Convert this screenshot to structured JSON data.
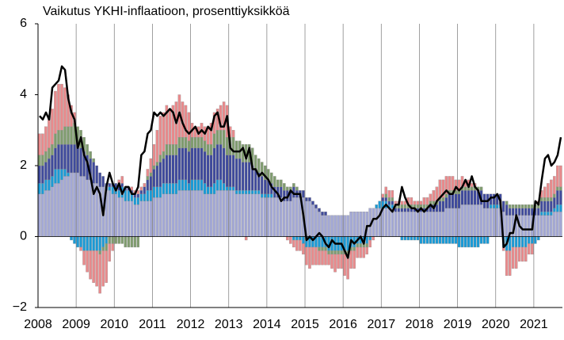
{
  "chart_data": {
    "type": "stacked_bar",
    "title": "Vaikutus YKHI-inflaatioon, prosenttiyksikköä",
    "categories": [
      "2008",
      null,
      null,
      null,
      null,
      null,
      null,
      null,
      null,
      null,
      null,
      null,
      "2009",
      null,
      null,
      null,
      null,
      null,
      null,
      null,
      null,
      null,
      null,
      null,
      "2010",
      null,
      null,
      null,
      null,
      null,
      null,
      null,
      null,
      null,
      null,
      null,
      "2011",
      null,
      null,
      null,
      null,
      null,
      null,
      null,
      null,
      null,
      null,
      null,
      "2012",
      null,
      null,
      null,
      null,
      null,
      null,
      null,
      null,
      null,
      null,
      null,
      "2013",
      null,
      null,
      null,
      null,
      null,
      null,
      null,
      null,
      null,
      null,
      null,
      "2014",
      null,
      null,
      null,
      null,
      null,
      null,
      null,
      null,
      null,
      null,
      null,
      "2015",
      null,
      null,
      null,
      null,
      null,
      null,
      null,
      null,
      null,
      null,
      null,
      "2016",
      null,
      null,
      null,
      null,
      null,
      null,
      null,
      null,
      null,
      null,
      null,
      "2017",
      null,
      null,
      null,
      null,
      null,
      null,
      null,
      null,
      null,
      null,
      null,
      "2018",
      null,
      null,
      null,
      null,
      null,
      null,
      null,
      null,
      null,
      null,
      null,
      "2019",
      null,
      null,
      null,
      null,
      null,
      null,
      null,
      null,
      null,
      null,
      null,
      "2020",
      null,
      null,
      null,
      null,
      null,
      null,
      null,
      null,
      null,
      null,
      null,
      "2021",
      null,
      null,
      null,
      null,
      null,
      null,
      null,
      null
    ],
    "ylim": [
      -2,
      6
    ],
    "yticks": [
      {
        "value": -2,
        "label": "−2"
      },
      0,
      2,
      4,
      6
    ],
    "grid": true,
    "series": [
      {
        "color": "#a3a8d6",
        "values": [
          1.2,
          1.2,
          1.3,
          1.3,
          1.4,
          1.5,
          1.5,
          1.6,
          1.7,
          1.7,
          1.8,
          1.8,
          1.8,
          1.7,
          1.7,
          1.6,
          1.6,
          1.5,
          1.5,
          1.4,
          1.4,
          1.3,
          1.3,
          1.2,
          1.2,
          1.1,
          1.1,
          1.0,
          1.0,
          1.0,
          0.9,
          0.9,
          1.0,
          1.0,
          1.0,
          1.0,
          1.1,
          1.1,
          1.1,
          1.2,
          1.2,
          1.2,
          1.2,
          1.2,
          1.3,
          1.3,
          1.3,
          1.3,
          1.3,
          1.3,
          1.3,
          1.3,
          1.2,
          1.2,
          1.2,
          1.2,
          1.3,
          1.3,
          1.3,
          1.3,
          1.3,
          1.3,
          1.2,
          1.2,
          1.2,
          1.2,
          1.2,
          1.2,
          1.2,
          1.2,
          1.1,
          1.1,
          1.1,
          1.1,
          1.1,
          1.1,
          1.1,
          1.0,
          1.0,
          1.0,
          1.1,
          1.1,
          1.1,
          1.1,
          1.0,
          1.0,
          0.9,
          0.8,
          0.7,
          0.6,
          0.6,
          0.6,
          0.6,
          0.6,
          0.6,
          0.6,
          0.6,
          0.6,
          0.7,
          0.7,
          0.7,
          0.7,
          0.7,
          0.7,
          0.8,
          0.8,
          0.8,
          0.8,
          0.8,
          0.8,
          0.8,
          0.8,
          0.7,
          0.7,
          0.7,
          0.7,
          0.7,
          0.7,
          0.7,
          0.7,
          0.7,
          0.7,
          0.7,
          0.7,
          0.7,
          0.7,
          0.7,
          0.7,
          0.8,
          0.8,
          0.8,
          0.8,
          0.8,
          0.9,
          0.9,
          0.9,
          0.9,
          0.9,
          0.9,
          0.9,
          0.8,
          0.8,
          0.8,
          0.8,
          0.8,
          0.8,
          0.7,
          0.6,
          0.6,
          0.6,
          0.6,
          0.6,
          0.6,
          0.6,
          0.6,
          0.6,
          0.6,
          0.6,
          0.6,
          0.6,
          0.6,
          0.6,
          0.7,
          0.7,
          0.7
        ]
      },
      {
        "color": "#1a9ad6",
        "values": [
          0.3,
          0.3,
          0.3,
          0.3,
          0.3,
          0.4,
          0.4,
          0.3,
          0.2,
          0.1,
          -0.1,
          -0.2,
          -0.3,
          -0.3,
          -0.4,
          -0.4,
          -0.4,
          -0.4,
          -0.4,
          -0.4,
          -0.3,
          -0.2,
          0.1,
          0.2,
          0.2,
          0.2,
          0.3,
          0.3,
          0.3,
          0.2,
          0.2,
          0.2,
          0.2,
          0.2,
          0.3,
          0.3,
          0.3,
          0.3,
          0.3,
          0.3,
          0.3,
          0.3,
          0.3,
          0.3,
          0.3,
          0.3,
          0.3,
          0.2,
          0.3,
          0.3,
          0.3,
          0.3,
          0.3,
          0.2,
          0.2,
          0.3,
          0.3,
          0.3,
          0.2,
          0.1,
          0.1,
          0.1,
          0.1,
          0.1,
          0.1,
          0.1,
          0.1,
          0.1,
          0.1,
          0.1,
          0.1,
          0.1,
          0.1,
          0.1,
          0.0,
          0.0,
          0.0,
          0.0,
          0.0,
          0.0,
          -0.1,
          -0.1,
          -0.1,
          -0.2,
          -0.3,
          -0.3,
          -0.3,
          -0.3,
          -0.3,
          -0.3,
          -0.3,
          -0.4,
          -0.4,
          -0.4,
          -0.4,
          -0.4,
          -0.4,
          -0.4,
          -0.3,
          -0.3,
          -0.2,
          -0.2,
          -0.2,
          -0.2,
          -0.1,
          0.0,
          0.1,
          0.2,
          0.2,
          0.2,
          0.1,
          0.1,
          0.0,
          0.0,
          -0.1,
          -0.1,
          -0.1,
          -0.1,
          -0.1,
          -0.1,
          -0.2,
          -0.2,
          -0.2,
          -0.2,
          -0.2,
          -0.2,
          -0.2,
          -0.2,
          -0.2,
          -0.2,
          -0.2,
          -0.2,
          -0.3,
          -0.3,
          -0.3,
          -0.3,
          -0.3,
          -0.3,
          -0.3,
          -0.2,
          -0.2,
          -0.2,
          0.1,
          0.1,
          0.1,
          0.1,
          -0.3,
          -0.4,
          -0.4,
          -0.3,
          -0.3,
          -0.3,
          -0.3,
          -0.3,
          -0.2,
          -0.2,
          -0.2,
          -0.1,
          0.1,
          0.1,
          0.1,
          0.1,
          0.1,
          0.2,
          0.2
        ]
      },
      {
        "color": "#3f4a9c",
        "values": [
          0.5,
          0.5,
          0.5,
          0.6,
          0.6,
          0.6,
          0.7,
          0.7,
          0.7,
          0.8,
          0.8,
          0.8,
          0.8,
          0.8,
          0.7,
          0.7,
          0.6,
          0.6,
          0.5,
          0.4,
          0.3,
          0.2,
          0.1,
          0.1,
          0.1,
          0.1,
          0.1,
          0.1,
          0.1,
          0.1,
          0.1,
          0.1,
          0.1,
          0.2,
          0.3,
          0.4,
          0.5,
          0.6,
          0.7,
          0.7,
          0.8,
          0.8,
          0.8,
          0.8,
          0.9,
          0.9,
          0.9,
          0.9,
          0.9,
          0.9,
          0.9,
          0.9,
          0.9,
          0.9,
          0.9,
          1.0,
          1.0,
          1.0,
          1.0,
          0.9,
          0.9,
          0.9,
          0.9,
          0.9,
          0.8,
          0.8,
          0.8,
          0.7,
          0.6,
          0.5,
          0.5,
          0.4,
          0.4,
          0.3,
          0.3,
          0.3,
          0.3,
          0.3,
          0.3,
          0.3,
          0.3,
          0.2,
          0.2,
          0.2,
          0.1,
          0.1,
          0.1,
          0.1,
          0.1,
          0.1,
          0.1,
          0.0,
          0.0,
          0.0,
          0.0,
          0.0,
          0.0,
          0.0,
          0.0,
          0.0,
          0.0,
          0.0,
          0.0,
          0.0,
          0.0,
          0.0,
          0.0,
          0.0,
          0.1,
          0.1,
          0.1,
          0.1,
          0.1,
          0.1,
          0.1,
          0.1,
          0.1,
          0.1,
          0.1,
          0.1,
          0.1,
          0.1,
          0.1,
          0.2,
          0.2,
          0.2,
          0.3,
          0.3,
          0.3,
          0.4,
          0.4,
          0.4,
          0.4,
          0.4,
          0.4,
          0.4,
          0.4,
          0.4,
          0.4,
          0.4,
          0.4,
          0.4,
          0.3,
          0.3,
          0.3,
          0.3,
          0.3,
          0.3,
          0.2,
          0.2,
          0.2,
          0.2,
          0.2,
          0.2,
          0.2,
          0.2,
          0.2,
          0.2,
          0.3,
          0.3,
          0.3,
          0.3,
          0.3,
          0.4,
          0.4
        ]
      },
      {
        "color": "#7f9c6e",
        "values": [
          0.3,
          0.3,
          0.3,
          0.3,
          0.3,
          0.4,
          0.4,
          0.4,
          0.5,
          0.5,
          0.5,
          0.6,
          0.5,
          0.5,
          0.4,
          0.3,
          0.2,
          0.1,
          0.0,
          -0.1,
          -0.1,
          -0.2,
          -0.2,
          -0.2,
          -0.2,
          -0.2,
          -0.2,
          -0.3,
          -0.3,
          -0.3,
          -0.3,
          -0.3,
          0.0,
          0.0,
          0.1,
          0.1,
          0.1,
          0.1,
          0.2,
          0.2,
          0.3,
          0.3,
          0.3,
          0.3,
          0.3,
          0.3,
          0.3,
          0.3,
          0.3,
          0.3,
          0.3,
          0.3,
          0.3,
          0.3,
          0.3,
          0.4,
          0.4,
          0.4,
          0.5,
          0.5,
          0.5,
          0.5,
          0.5,
          0.5,
          0.5,
          0.5,
          0.5,
          0.5,
          0.4,
          0.4,
          0.4,
          0.4,
          0.3,
          0.3,
          0.3,
          0.2,
          0.2,
          0.2,
          0.1,
          0.1,
          0.1,
          0.1,
          0.0,
          0.0,
          0.0,
          0.0,
          0.0,
          0.0,
          -0.1,
          -0.1,
          -0.1,
          -0.1,
          -0.1,
          -0.1,
          -0.1,
          -0.1,
          -0.1,
          -0.1,
          -0.1,
          -0.1,
          -0.1,
          -0.1,
          -0.1,
          -0.1,
          0.0,
          0.0,
          0.0,
          0.0,
          0.0,
          0.1,
          0.1,
          0.1,
          0.1,
          0.1,
          0.1,
          0.1,
          0.1,
          0.1,
          0.1,
          0.1,
          0.1,
          0.1,
          0.1,
          0.1,
          0.1,
          0.1,
          0.1,
          0.1,
          0.1,
          0.1,
          0.1,
          0.1,
          0.1,
          0.1,
          0.1,
          0.1,
          0.1,
          0.1,
          0.1,
          0.1,
          0.0,
          0.0,
          0.0,
          0.0,
          0.0,
          0.0,
          0.0,
          0.1,
          0.1,
          0.1,
          0.1,
          0.1,
          0.1,
          0.1,
          0.1,
          0.1,
          0.1,
          0.1,
          0.1,
          0.1,
          0.1,
          0.1,
          0.1,
          0.1,
          0.1
        ]
      },
      {
        "color": "#e98a8c",
        "values": [
          0.6,
          0.6,
          0.7,
          0.9,
          1.0,
          1.2,
          1.3,
          1.3,
          1.1,
          0.9,
          0.6,
          0.3,
          0.0,
          -0.1,
          -0.4,
          -0.6,
          -0.8,
          -0.9,
          -1.0,
          -1.1,
          -1.0,
          -0.9,
          -0.5,
          -0.2,
          0.0,
          0.2,
          0.2,
          0.0,
          0.0,
          0.1,
          0.1,
          0.1,
          0.1,
          0.1,
          0.2,
          0.4,
          0.6,
          0.9,
          1.1,
          1.1,
          1.1,
          1.0,
          1.1,
          1.2,
          1.2,
          1.0,
          0.9,
          0.8,
          0.4,
          0.3,
          0.3,
          0.4,
          0.4,
          0.5,
          0.6,
          0.6,
          0.6,
          0.7,
          0.8,
          0.9,
          0.3,
          0.2,
          0.0,
          0.0,
          0.0,
          -0.1,
          0.0,
          0.0,
          0.0,
          0.0,
          0.0,
          0.0,
          0.0,
          0.0,
          0.0,
          0.0,
          0.0,
          0.0,
          -0.1,
          -0.2,
          -0.2,
          -0.3,
          -0.3,
          -0.3,
          -0.5,
          -0.6,
          -0.5,
          -0.5,
          -0.4,
          -0.4,
          -0.4,
          -0.3,
          -0.4,
          -0.5,
          -0.4,
          -0.4,
          -0.6,
          -0.7,
          -0.5,
          -0.5,
          -0.3,
          -0.3,
          -0.3,
          -0.2,
          -0.2,
          -0.1,
          0.0,
          0.0,
          0.1,
          0.2,
          0.2,
          0.2,
          0.1,
          0.1,
          0.1,
          0.1,
          0.2,
          0.2,
          0.1,
          0.1,
          0.1,
          0.2,
          0.2,
          0.2,
          0.3,
          0.4,
          0.5,
          0.5,
          0.5,
          0.4,
          0.4,
          0.3,
          0.3,
          0.3,
          0.2,
          0.2,
          0.1,
          0.1,
          0.0,
          0.0,
          0.0,
          0.0,
          0.0,
          0.0,
          0.0,
          0.0,
          -0.1,
          -0.7,
          -0.7,
          -0.6,
          -0.6,
          -0.4,
          -0.4,
          -0.4,
          -0.3,
          -0.3,
          0.0,
          0.1,
          0.2,
          0.3,
          0.4,
          0.5,
          0.5,
          0.6,
          0.6
        ]
      },
      {
        "type": "line",
        "color": "#000000",
        "values": [
          3.4,
          3.3,
          3.5,
          3.3,
          4.2,
          4.3,
          4.4,
          4.8,
          4.7,
          3.9,
          3.5,
          3.3,
          2.5,
          2.8,
          2.3,
          2.1,
          1.7,
          1.2,
          1.4,
          1.2,
          0.6,
          1.4,
          1.8,
          1.5,
          1.3,
          1.5,
          1.2,
          1.4,
          1.4,
          1.2,
          1.2,
          1.4,
          2.3,
          2.4,
          2.9,
          3.0,
          3.5,
          3.4,
          3.5,
          3.4,
          3.5,
          3.6,
          3.5,
          3.2,
          3.5,
          3.2,
          3.0,
          2.9,
          3.0,
          3.1,
          2.9,
          3.0,
          2.9,
          3.1,
          3.0,
          3.4,
          3.5,
          3.1,
          3.1,
          3.4,
          2.5,
          2.4,
          2.4,
          2.4,
          2.5,
          2.2,
          2.5,
          1.9,
          1.9,
          1.7,
          1.8,
          1.7,
          1.6,
          1.4,
          1.3,
          1.2,
          1.0,
          1.1,
          1.1,
          1.3,
          1.2,
          1.2,
          1.2,
          0.6,
          -0.1,
          0.0,
          -0.1,
          0.0,
          0.1,
          0.0,
          -0.2,
          -0.3,
          -0.1,
          -0.2,
          -0.2,
          -0.2,
          -0.4,
          -0.6,
          -0.1,
          -0.2,
          -0.1,
          0.0,
          -0.2,
          0.3,
          0.3,
          0.5,
          0.5,
          0.6,
          0.8,
          0.9,
          0.8,
          0.7,
          0.9,
          0.9,
          1.4,
          1.1,
          0.9,
          0.8,
          0.8,
          0.7,
          0.8,
          0.7,
          0.8,
          0.9,
          0.8,
          1.0,
          1.1,
          1.2,
          1.3,
          1.2,
          1.2,
          1.4,
          1.3,
          1.4,
          1.6,
          1.4,
          1.7,
          1.4,
          1.3,
          1.0,
          1.0,
          1.0,
          1.1,
          1.1,
          1.2,
          1.0,
          -0.3,
          -0.2,
          0.1,
          0.1,
          0.6,
          0.3,
          0.2,
          0.2,
          0.2,
          0.2,
          1.0,
          0.9,
          1.6,
          2.2,
          2.3,
          2.0,
          2.1,
          2.3,
          2.8
        ]
      }
    ]
  }
}
